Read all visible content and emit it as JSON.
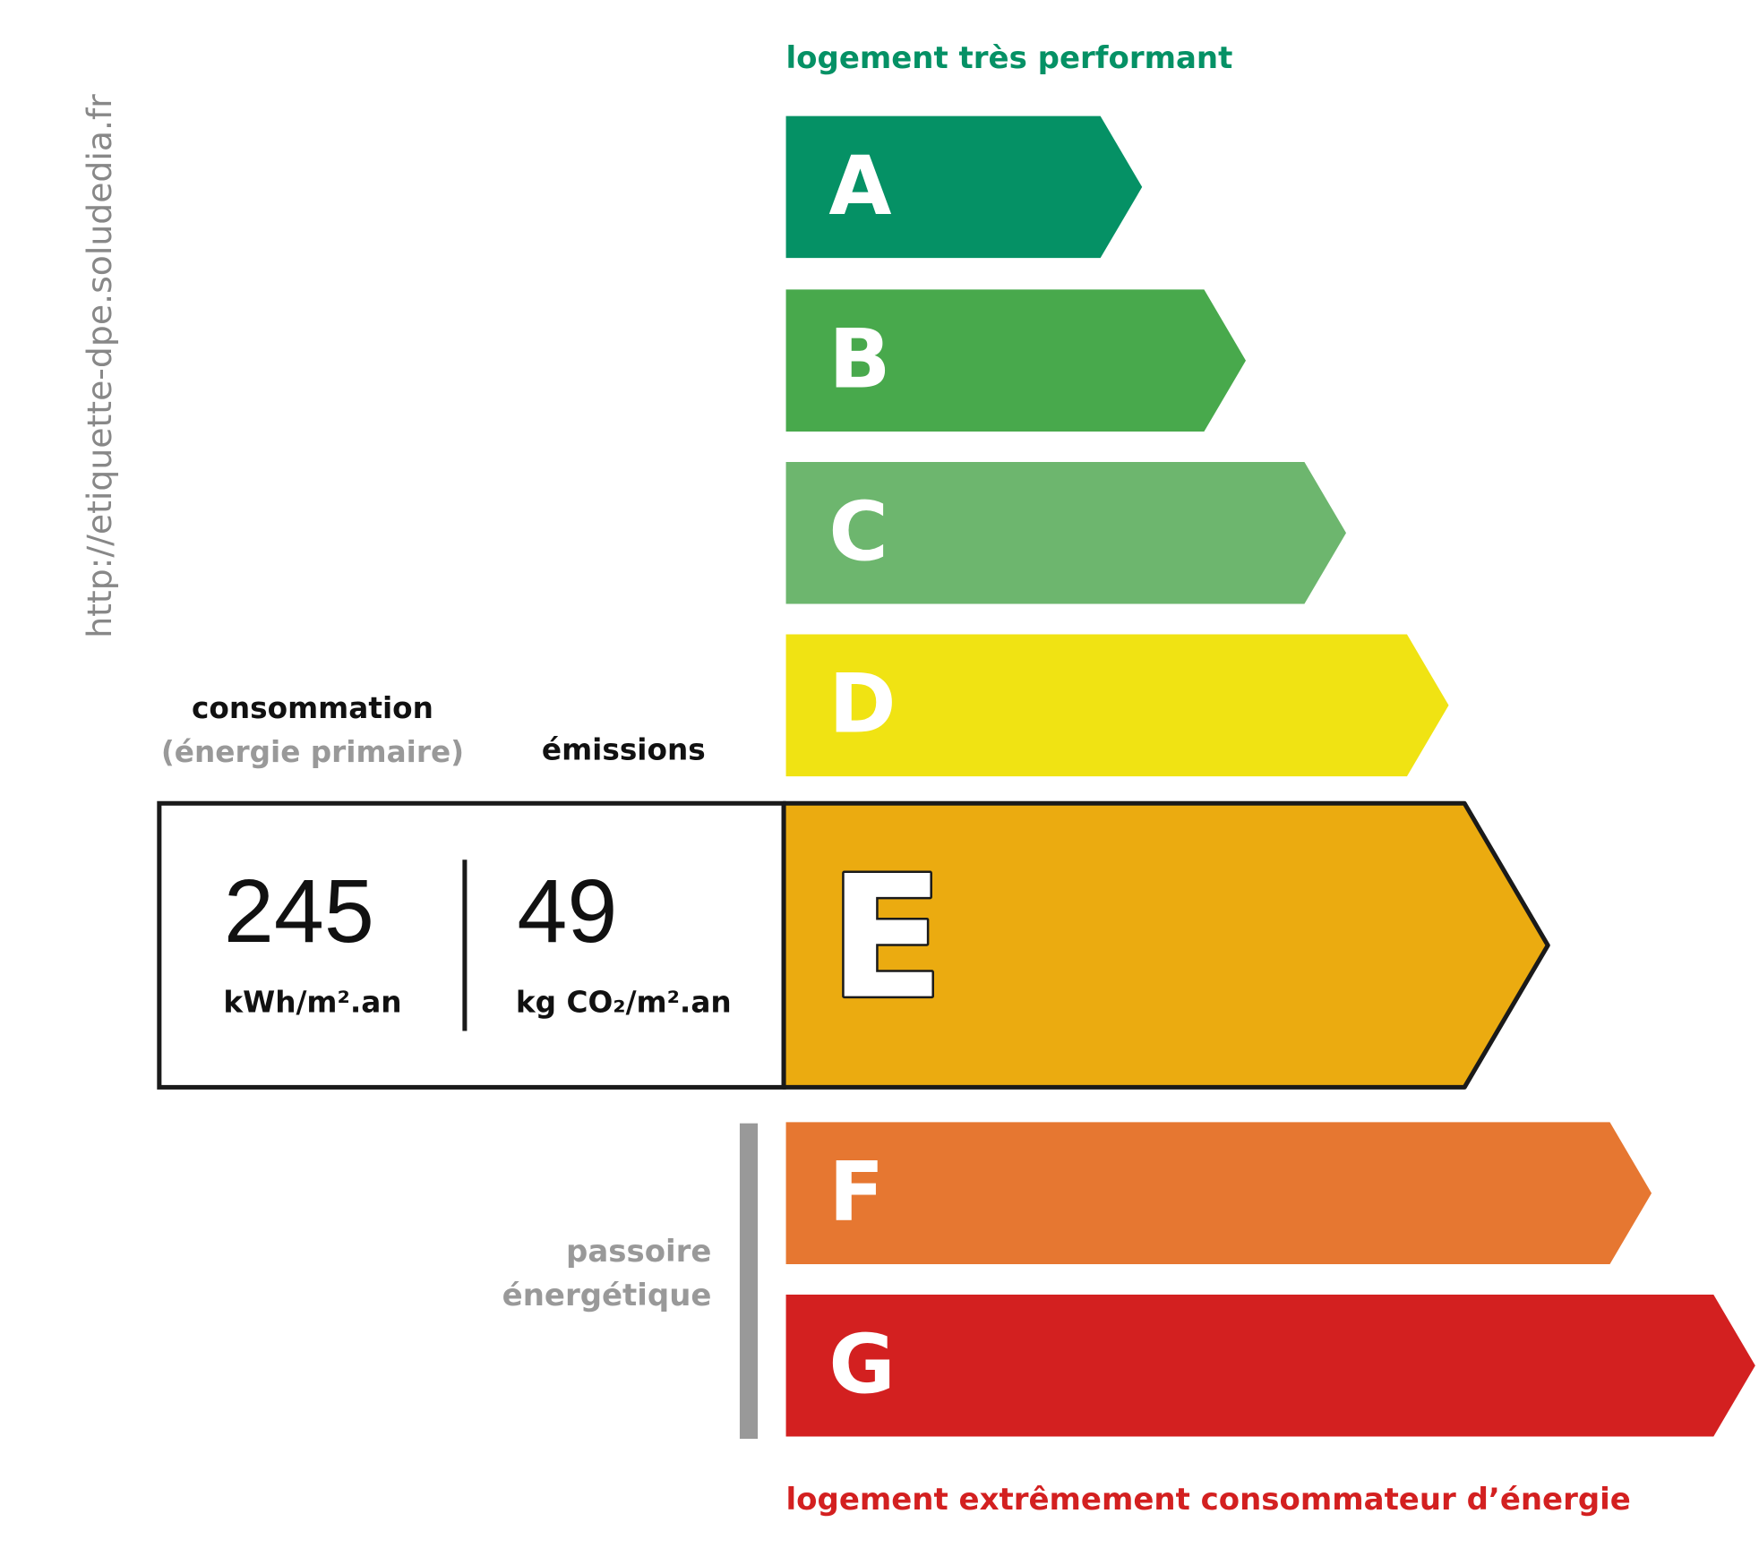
{
  "url": "http://etiquette-dpe.soludedia.fr",
  "top_label": "logement très performant",
  "bottom_label": "logement extrêmement consommateur d’énergie",
  "consumption": {
    "title": "consommation",
    "subtitle": "(énergie primaire)",
    "value": "245",
    "unit": "kWh/m².an"
  },
  "emissions": {
    "title": "émissions",
    "value": "49",
    "unit": "kg CO₂/m².an"
  },
  "current_class": "E",
  "passoire": {
    "line1": "passoire",
    "line2": "énergétique"
  },
  "classes": [
    {
      "letter": "A",
      "color": "#059165"
    },
    {
      "letter": "B",
      "color": "#48a94c"
    },
    {
      "letter": "C",
      "color": "#6db66e"
    },
    {
      "letter": "D",
      "color": "#f0e313"
    },
    {
      "letter": "E",
      "color": "#ebab10"
    },
    {
      "letter": "F",
      "color": "#e67731"
    },
    {
      "letter": "G",
      "color": "#d32020"
    }
  ]
}
